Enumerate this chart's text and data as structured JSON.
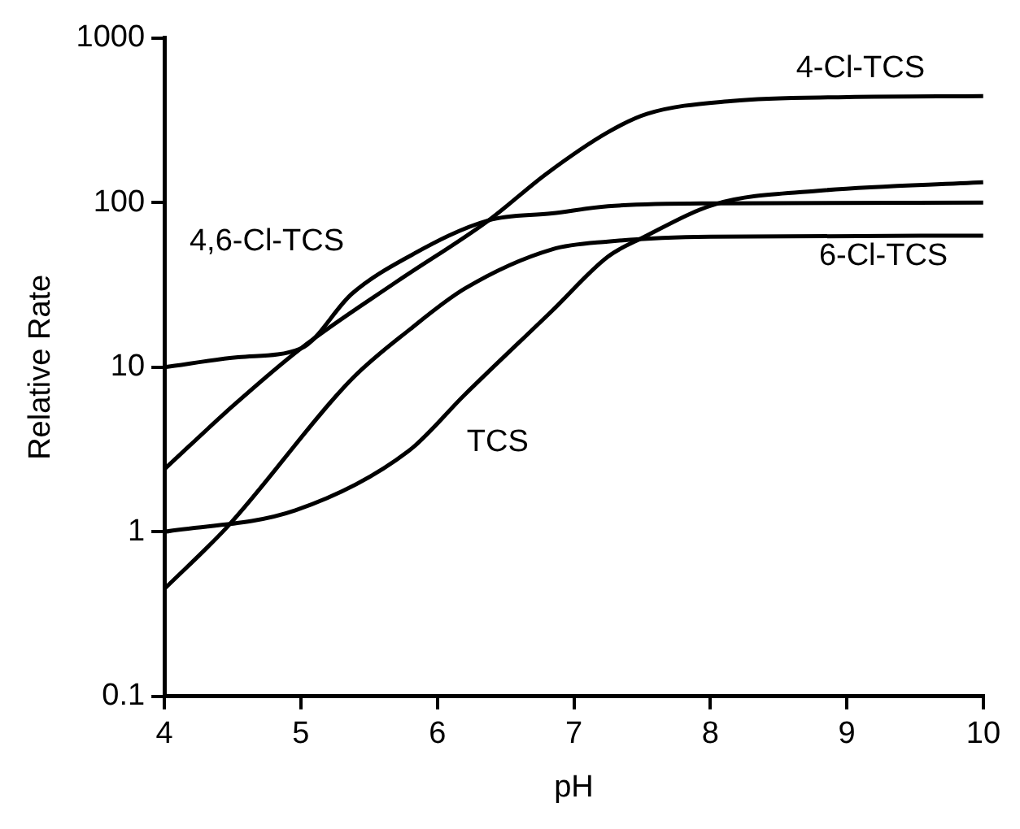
{
  "chart_data": {
    "type": "line",
    "xlabel": "pH",
    "ylabel": "Relative Rate",
    "xlim": [
      4,
      10
    ],
    "xticks": [
      4,
      5,
      6,
      7,
      8,
      9,
      10
    ],
    "ylim": [
      0.1,
      1000
    ],
    "yticks": [
      0.1,
      1,
      10,
      100,
      1000
    ],
    "log": "y",
    "marker": "none",
    "line_style": "solid",
    "series": [
      {
        "name": "4-Cl-TCS",
        "color": "#000000",
        "x": [
          4,
          4.5,
          5,
          5.7,
          6.375,
          6.8,
          7.25,
          7.54,
          8.16,
          9,
          10
        ],
        "values": [
          2.4,
          5.8,
          13,
          33,
          78,
          150,
          268,
          347,
          415,
          438,
          444
        ]
      },
      {
        "name": "4,6-Cl-TCS",
        "color": "#000000",
        "x": [
          4,
          4.54,
          5,
          5.375,
          5.79,
          6.375,
          6.84,
          7.25,
          8,
          10
        ],
        "values": [
          10,
          11.5,
          13,
          28,
          47,
          78,
          86,
          95,
          99,
          100
        ]
      },
      {
        "name": "6-Cl-TCS",
        "color": "#000000",
        "x": [
          4,
          4.46,
          5.375,
          5.8,
          6.2,
          6.84,
          7.25,
          8,
          10
        ],
        "values": [
          0.45,
          1.07,
          8.5,
          17,
          30,
          52,
          58,
          62,
          63
        ]
      },
      {
        "name": "TCS",
        "color": "#000000",
        "x": [
          4,
          4.96,
          5.79,
          6.2,
          6.84,
          7.25,
          7.5,
          8.04,
          8.79,
          10
        ],
        "values": [
          1,
          1.35,
          3.1,
          6.8,
          22,
          47,
          61,
          98,
          118,
          133
        ]
      }
    ]
  }
}
